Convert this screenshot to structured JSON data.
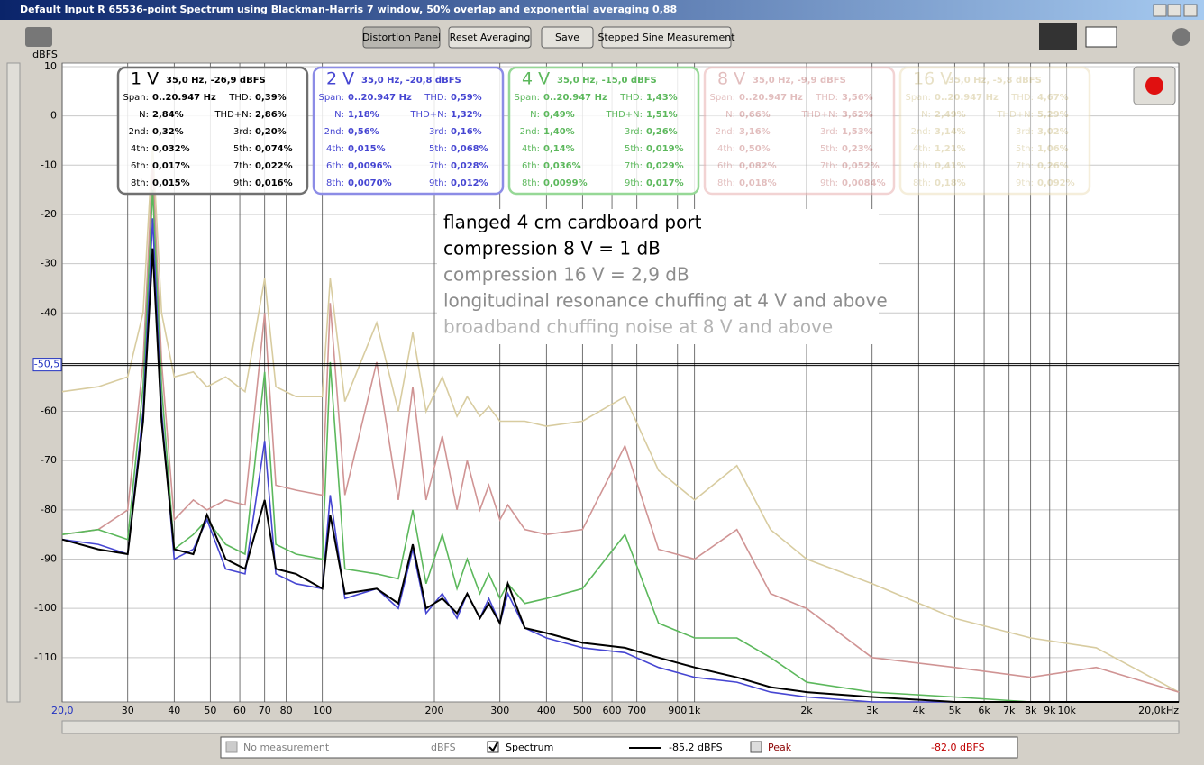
{
  "window": {
    "title": "Default Input R 65536-point Spectrum using Blackman-Harris 7 window, 50% overlap and exponential averaging 0,88"
  },
  "toolbar": {
    "buttons": [
      "Distortion Panel",
      "Reset Averaging",
      "Save",
      "Stepped Sine Measurement"
    ]
  },
  "chart_data": {
    "type": "line",
    "y_label": "dBFS",
    "log_x": true,
    "grid": true,
    "xlim": [
      20,
      20000
    ],
    "xticks": [
      {
        "value": 20,
        "label": "20,0"
      },
      30,
      40,
      50,
      60,
      70,
      80,
      100,
      200,
      300,
      400,
      500,
      600,
      700,
      900,
      {
        "value": 1000,
        "label": "1k"
      },
      {
        "value": 2000,
        "label": "2k"
      },
      {
        "value": 3000,
        "label": "3k"
      },
      {
        "value": 4000,
        "label": "4k"
      },
      {
        "value": 5000,
        "label": "5k"
      },
      {
        "value": 6000,
        "label": "6k"
      },
      {
        "value": 7000,
        "label": "7k"
      },
      {
        "value": 8000,
        "label": "8k"
      },
      {
        "value": 9000,
        "label": "9k"
      },
      {
        "value": 10000,
        "label": "10k"
      },
      {
        "value": 20000,
        "label": "20,0kHz"
      }
    ],
    "ylim": [
      -119,
      10
    ],
    "yticks": [
      10,
      0,
      -10,
      -20,
      -30,
      -40,
      -60,
      -70,
      -80,
      -90,
      -100,
      -110
    ],
    "cursor": {
      "value": -50.5,
      "label": "-50,5"
    },
    "x": [
      20,
      25,
      30,
      33,
      35,
      37,
      40,
      45,
      49,
      55,
      62,
      70,
      75,
      85,
      100,
      105,
      115,
      140,
      160,
      175,
      190,
      210,
      230,
      245,
      265,
      280,
      300,
      315,
      350,
      400,
      500,
      650,
      800,
      1000,
      1300,
      1600,
      2000,
      3000,
      5000,
      8000,
      12000,
      20000
    ],
    "series": [
      {
        "name": "16 V",
        "color": "#d8cca0",
        "values": [
          -56,
          -55,
          -53,
          -40,
          -5.8,
          -40,
          -53,
          -52,
          -55,
          -53,
          -56,
          -33,
          -55,
          -57,
          -57,
          -33,
          -58,
          -42,
          -60,
          -44,
          -60,
          -53,
          -61,
          -57,
          -61,
          -59,
          -62,
          -62,
          -62,
          -63,
          -62,
          -57,
          -72,
          -78,
          -71,
          -84,
          -90,
          -95,
          -102,
          -106,
          -108,
          -117
        ]
      },
      {
        "name": "8 V",
        "color": "#d09494",
        "values": [
          -85,
          -84,
          -80,
          -50,
          -9.9,
          -50,
          -82,
          -78,
          -80,
          -78,
          -79,
          -40,
          -75,
          -76,
          -77,
          -38,
          -77,
          -50,
          -78,
          -55,
          -78,
          -65,
          -80,
          -70,
          -80,
          -75,
          -82,
          -79,
          -84,
          -85,
          -84,
          -67,
          -88,
          -90,
          -84,
          -97,
          -100,
          -110,
          -112,
          -114,
          -112,
          -117
        ]
      },
      {
        "name": "4 V",
        "color": "#5cb85c",
        "values": [
          -85,
          -84,
          -86,
          -55,
          -15,
          -55,
          -88,
          -85,
          -82,
          -87,
          -89,
          -52,
          -87,
          -89,
          -90,
          -50,
          -92,
          -93,
          -94,
          -80,
          -95,
          -85,
          -96,
          -90,
          -97,
          -93,
          -98,
          -95,
          -99,
          -98,
          -96,
          -85,
          -103,
          -106,
          -106,
          -110,
          -115,
          -117,
          -118,
          -119,
          -119,
          -119
        ]
      },
      {
        "name": "2 V",
        "color": "#4646d2",
        "values": [
          -86,
          -87,
          -89,
          -60,
          -20.8,
          -60,
          -90,
          -88,
          -82,
          -92,
          -93,
          -66,
          -93,
          -95,
          -96,
          -77,
          -98,
          -96,
          -100,
          -88,
          -101,
          -97,
          -102,
          -97,
          -102,
          -98,
          -103,
          -97,
          -104,
          -106,
          -108,
          -109,
          -112,
          -114,
          -115,
          -117,
          -118,
          -119,
          -119,
          -119,
          -119,
          -119
        ]
      },
      {
        "name": "1 V",
        "color": "#000000",
        "values": [
          -86,
          -88,
          -89,
          -62,
          -26.9,
          -62,
          -88,
          -89,
          -81,
          -90,
          -92,
          -78,
          -92,
          -93,
          -96,
          -81,
          -97,
          -96,
          -99,
          -87,
          -100,
          -98,
          -101,
          -97,
          -102,
          -99,
          -103,
          -95,
          -104,
          -105,
          -107,
          -108,
          -110,
          -112,
          -114,
          -116,
          -117,
          -118,
          -119,
          -119,
          -119,
          -119
        ]
      }
    ],
    "distortion_panels": [
      {
        "series": 4,
        "info": "35,0 Hz, -26,9 dBFS",
        "rows": [
          [
            "Span:",
            "0..20.947 Hz",
            "THD:",
            "0,39%"
          ],
          [
            "N:",
            "2,84%",
            "THD+N:",
            "2,86%"
          ],
          [
            "2nd:",
            "0,32%",
            "3rd:",
            "0,20%"
          ],
          [
            "4th:",
            "0,032%",
            "5th:",
            "0,074%"
          ],
          [
            "6th:",
            "0,017%",
            "7th:",
            "0,022%"
          ],
          [
            "8th:",
            "0,015%",
            "9th:",
            "0,016%"
          ]
        ]
      },
      {
        "series": 3,
        "info": "35,0 Hz, -20,8 dBFS",
        "rows": [
          [
            "Span:",
            "0..20.947 Hz",
            "THD:",
            "0,59%"
          ],
          [
            "N:",
            "1,18%",
            "THD+N:",
            "1,32%"
          ],
          [
            "2nd:",
            "0,56%",
            "3rd:",
            "0,16%"
          ],
          [
            "4th:",
            "0,015%",
            "5th:",
            "0,068%"
          ],
          [
            "6th:",
            "0,0096%",
            "7th:",
            "0,028%"
          ],
          [
            "8th:",
            "0,0070%",
            "9th:",
            "0,012%"
          ]
        ]
      },
      {
        "series": 2,
        "info": "35,0 Hz, -15,0 dBFS",
        "rows": [
          [
            "Span:",
            "0..20.947 Hz",
            "THD:",
            "1,43%"
          ],
          [
            "N:",
            "0,49%",
            "THD+N:",
            "1,51%"
          ],
          [
            "2nd:",
            "1,40%",
            "3rd:",
            "0,26%"
          ],
          [
            "4th:",
            "0,14%",
            "5th:",
            "0,019%"
          ],
          [
            "6th:",
            "0,036%",
            "7th:",
            "0,029%"
          ],
          [
            "8th:",
            "0,0099%",
            "9th:",
            "0,017%"
          ]
        ]
      },
      {
        "series": 1,
        "info": "35,0 Hz, -9,9 dBFS",
        "rows": [
          [
            "Span:",
            "0..20.947 Hz",
            "THD:",
            "3,56%"
          ],
          [
            "N:",
            "0,66%",
            "THD+N:",
            "3,62%"
          ],
          [
            "2nd:",
            "3,16%",
            "3rd:",
            "1,53%"
          ],
          [
            "4th:",
            "0,50%",
            "5th:",
            "0,23%"
          ],
          [
            "6th:",
            "0,082%",
            "7th:",
            "0,052%"
          ],
          [
            "8th:",
            "0,018%",
            "9th:",
            "0,0084%"
          ]
        ]
      },
      {
        "series": 0,
        "info": "35,0 Hz, -5,8 dBFS",
        "rows": [
          [
            "Span:",
            "0..20.947 Hz",
            "THD:",
            "4,67%"
          ],
          [
            "N:",
            "2,49%",
            "THD+N:",
            "5,29%"
          ],
          [
            "2nd:",
            "3,14%",
            "3rd:",
            "3,02%"
          ],
          [
            "4th:",
            "1,21%",
            "5th:",
            "1,06%"
          ],
          [
            "6th:",
            "0,41%",
            "7th:",
            "0,26%"
          ],
          [
            "8th:",
            "0,18%",
            "9th:",
            "0,092%"
          ]
        ]
      }
    ],
    "annotations": [
      {
        "text": "flanged 4 cm cardboard port",
        "color": "#000000"
      },
      {
        "text": "compression 8 V = 1 dB",
        "color": "#000000"
      },
      {
        "text": "compression 16 V = 2,9 dB",
        "color": "#8c8c8c"
      },
      {
        "text": "longitudinal resonance chuffing at 4 V and above",
        "color": "#8c8c8c"
      },
      {
        "text": "broadband chuffing noise at 8 V and above",
        "color": "#b4b4b4"
      }
    ]
  },
  "legend_bar": {
    "no_measurement": "No measurement",
    "unit": "dBFS",
    "spectrum": "Spectrum",
    "spectrum_value": "-85,2 dBFS",
    "peak": "Peak",
    "peak_value": "-82,0 dBFS"
  }
}
